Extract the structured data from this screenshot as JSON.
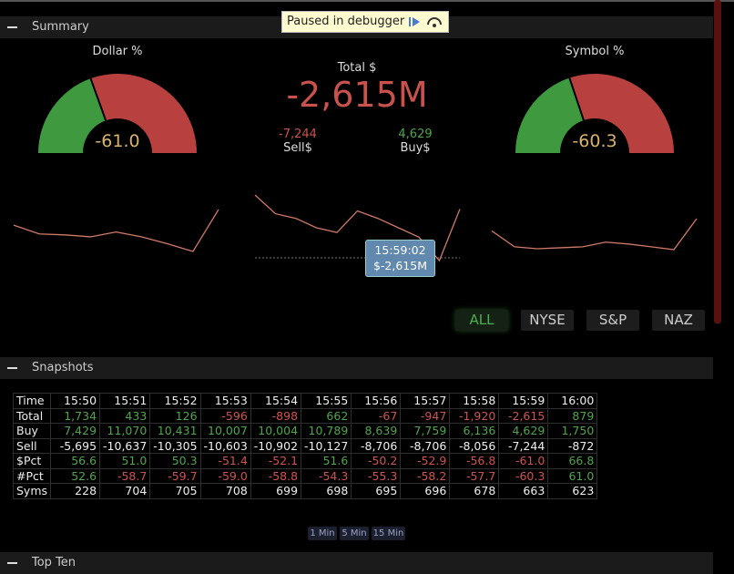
{
  "debugger": {
    "text": "Paused in debugger"
  },
  "summary": {
    "title": "Summary",
    "dollar_gauge": {
      "label": "Dollar %",
      "value": "-61.0"
    },
    "symbol_gauge": {
      "label": "Symbol %",
      "value": "-60.3"
    },
    "total": {
      "label": "Total $",
      "value": "-2,615M"
    },
    "sell": {
      "label": "Sell$",
      "value": "-7,244"
    },
    "buy": {
      "label": "Buy$",
      "value": "4,629"
    },
    "tooltip": {
      "time": "15:59:02",
      "value": "$-2,615M"
    },
    "trends": {
      "dollar": [
        32,
        23,
        22,
        20,
        25,
        20,
        13,
        5,
        48
      ],
      "total": [
        75,
        55,
        50,
        40,
        35,
        58,
        50,
        40,
        30,
        5,
        60
      ],
      "symbol": [
        27,
        10,
        8,
        9,
        10,
        15,
        13,
        10,
        7,
        40
      ]
    },
    "filters": [
      "ALL",
      "NYSE",
      "S&P",
      "NAZ"
    ]
  },
  "snapshots": {
    "title": "Snapshots",
    "table": {
      "header": [
        "Time",
        "15:50",
        "15:51",
        "15:52",
        "15:53",
        "15:54",
        "15:55",
        "15:56",
        "15:57",
        "15:58",
        "15:59",
        "16:00"
      ],
      "rows": [
        [
          "Total",
          "1,734",
          "433",
          "126",
          "-596",
          "-898",
          "662",
          "-67",
          "-947",
          "-1,920",
          "-2,615",
          "879"
        ],
        [
          "Buy",
          "7,429",
          "11,070",
          "10,431",
          "10,007",
          "10,004",
          "10,789",
          "8,639",
          "7,759",
          "6,136",
          "4,629",
          "1,750"
        ],
        [
          "Sell",
          "-5,695",
          "-10,637",
          "-10,305",
          "-10,603",
          "-10,902",
          "-10,127",
          "-8,706",
          "-8,706",
          "-8,056",
          "-7,244",
          "-872"
        ],
        [
          "$Pct",
          "56.6",
          "51.0",
          "50.3",
          "-51.4",
          "-52.1",
          "51.6",
          "-50.2",
          "-52.9",
          "-56.8",
          "-61.0",
          "66.8"
        ],
        [
          "#Pct",
          "52.6",
          "-58.7",
          "-59.7",
          "-59.0",
          "-58.8",
          "-54.3",
          "-55.3",
          "-58.2",
          "-57.7",
          "-60.3",
          "61.0"
        ],
        [
          "Syms",
          "228",
          "704",
          "705",
          "708",
          "699",
          "698",
          "695",
          "696",
          "678",
          "663",
          "623"
        ]
      ]
    },
    "intervals": [
      "1 Min",
      "5 Min",
      "15 Min"
    ]
  },
  "top_ten": {
    "title": "Top Ten"
  }
}
